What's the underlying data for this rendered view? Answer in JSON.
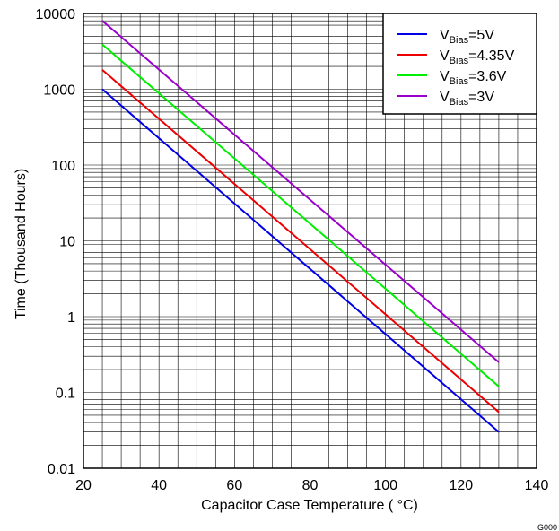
{
  "chart_data": {
    "type": "line",
    "xlabel": "Capacitor Case Temperature ( °C)",
    "ylabel": "Time (Thousand Hours)",
    "xlim": [
      20,
      140
    ],
    "ylim": [
      0.01,
      10000
    ],
    "yscale": "log",
    "grid": true,
    "legend_position": "top-right",
    "x_ticks": [
      20,
      40,
      60,
      80,
      100,
      120,
      140
    ],
    "x_tick_labels": [
      "20",
      "40",
      "60",
      "80",
      "100",
      "120",
      "140"
    ],
    "y_ticks": [
      0.01,
      0.1,
      1,
      10,
      100,
      1000,
      10000
    ],
    "y_tick_labels": [
      "0.01",
      "0.1",
      "1",
      "10",
      "100",
      "1000",
      "10000"
    ],
    "corner_label": "G000",
    "series": [
      {
        "legend_main": "V",
        "legend_sub": "Bias",
        "legend_value": "=5V",
        "color": "#0000e6",
        "x": [
          25,
          130
        ],
        "y": [
          1000,
          0.03
        ]
      },
      {
        "legend_main": "V",
        "legend_sub": "Bias",
        "legend_value": "=4.35V",
        "color": "#ee0000",
        "x": [
          25,
          130
        ],
        "y": [
          1800,
          0.055
        ]
      },
      {
        "legend_main": "V",
        "legend_sub": "Bias",
        "legend_value": "=3.6V",
        "color": "#00ee00",
        "x": [
          25,
          130
        ],
        "y": [
          3900,
          0.12
        ]
      },
      {
        "legend_main": "V",
        "legend_sub": "Bias",
        "legend_value": "=3V",
        "color": "#9900cc",
        "x": [
          25,
          130
        ],
        "y": [
          8000,
          0.25
        ]
      }
    ]
  }
}
